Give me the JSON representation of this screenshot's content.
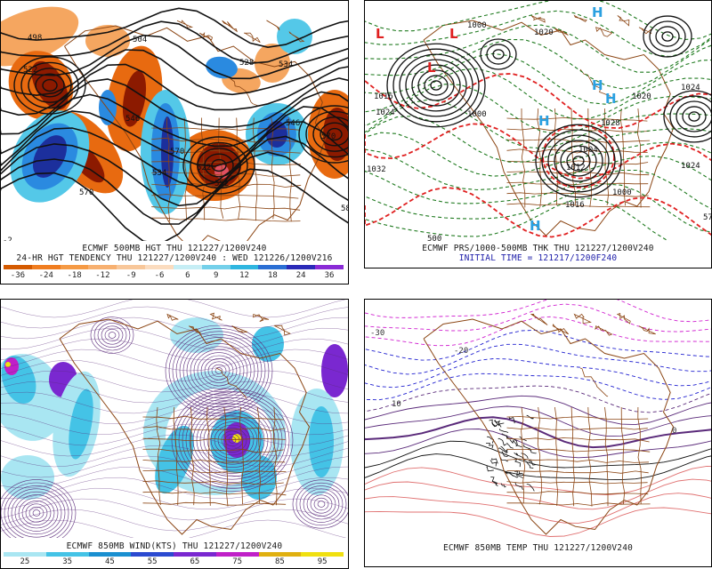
{
  "panels": {
    "tl": {
      "caption_line1": "ECMWF 500MB HGT THU 121227/1200V240",
      "caption_line2": "24-HR HGT TENDENCY THU 121227/1200V240 : WED 121226/1200V216",
      "scale_labels": [
        "-36",
        "-24",
        "-18",
        "-12",
        "-9",
        "-6",
        "6",
        "9",
        "12",
        "18",
        "24",
        "36"
      ],
      "scale_colors": [
        "#d45a00",
        "#f07d20",
        "#f59a45",
        "#f7b070",
        "#f8c79a",
        "#fbdcbf",
        "#c6eef5",
        "#74d0ea",
        "#2fb6e0",
        "#2b6fd4",
        "#2a2ab8",
        "#8a2bd6"
      ],
      "contour_labels": [
        "498",
        "504",
        "522",
        "570",
        "528",
        "534",
        "546",
        "570",
        "534",
        "522",
        "546",
        "570",
        "58",
        "552",
        "-2"
      ]
    },
    "tr": {
      "caption_line1": "ECMWF PRS/1000-500MB THK THU 121227/1200V240",
      "caption_line2": "INITIAL TIME = 121217/1200F240",
      "contour_labels": [
        "1000",
        "1020",
        "1024",
        "1032",
        "1028",
        "1020",
        "1000",
        "1024",
        "1016",
        "1000",
        "1012",
        "500",
        "57",
        "1004",
        "1024",
        "1016"
      ],
      "highs": [
        "H",
        "H",
        "H",
        "H",
        "H"
      ],
      "lows": [
        "L",
        "L",
        "L"
      ]
    },
    "bl": {
      "caption": "ECMWF 850MB WIND(KTS) THU 121227/1200V240",
      "scale_labels": [
        "25",
        "35",
        "45",
        "55",
        "65",
        "75",
        "85",
        "95"
      ],
      "scale_colors": [
        "#a9e6f2",
        "#44c3e6",
        "#1a8fd0",
        "#2b4ad0",
        "#7a28d0",
        "#c020c8",
        "#e0b010",
        "#f0e010"
      ]
    },
    "br": {
      "caption": "ECMWF 850MB TEMP THU 121227/1200V240",
      "contour_labels": [
        "-30",
        "-20",
        "0",
        "10"
      ]
    }
  },
  "colors": {
    "warm_dark": "#8c1a00",
    "warm": "#e86a10",
    "warm_light": "#f5a660",
    "cool_dark": "#1c2f9c",
    "cool": "#2a8ae0",
    "cool_light": "#54c8e8",
    "geo_border": "#8b4513",
    "contour": "#111111",
    "red_thk": "#e02020",
    "green_dash": "#1f7a1f",
    "high_color": "#2aa0e0",
    "low_color": "#e02020",
    "purple_stream": "#5a2a7a",
    "temp_blue": "#2020d0",
    "temp_magenta": "#d020d0"
  },
  "icons": {
    "map_projection": "north-america-polar-stereographic"
  }
}
